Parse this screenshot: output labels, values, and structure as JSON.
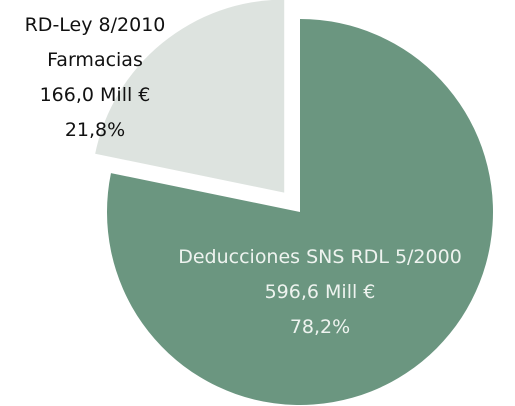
{
  "chart_data": {
    "type": "pie",
    "categories": [
      "Deducciones SNS RDL 5/2000",
      "RD-Ley 8/2010 Farmacias"
    ],
    "values": [
      596.6,
      166.0
    ],
    "value_labels": [
      "596,6 Mill €",
      "166,0 Mill €"
    ],
    "percent_values": [
      78.2,
      21.8
    ],
    "percent_labels": [
      "78,2%",
      "21,8%"
    ],
    "colors": [
      "#6b9680",
      "#dde3df"
    ],
    "label_colors": [
      "#eef3ef",
      "#111111"
    ]
  }
}
